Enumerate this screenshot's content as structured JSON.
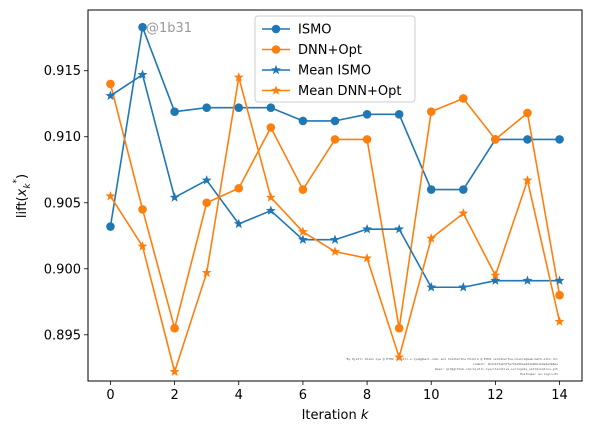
{
  "chart_data": {
    "type": "line",
    "xlabel_prefix": "Iteration ",
    "xlabel_var": "k",
    "ylabel_prefix": "lift(",
    "ylabel_var": "x",
    "ylabel_sub": "k",
    "ylabel_sup": "*",
    "ylabel_suffix": ")",
    "xlim": [
      -0.7,
      14.7
    ],
    "ylim": [
      0.8915,
      0.9196
    ],
    "xticks": [
      0,
      2,
      4,
      6,
      8,
      10,
      12,
      14
    ],
    "yticks": [
      0.895,
      0.9,
      0.905,
      0.91,
      0.915
    ],
    "ytick_labels": [
      "0.895",
      "0.900",
      "0.905",
      "0.910",
      "0.915"
    ],
    "x": [
      0,
      1,
      2,
      3,
      4,
      5,
      6,
      7,
      8,
      9,
      10,
      11,
      12,
      13,
      14
    ],
    "series": [
      {
        "name": "ISMO",
        "color": "#1f77b4",
        "marker": "circle",
        "values": [
          0.9032,
          0.9183,
          0.9119,
          0.9122,
          0.9122,
          0.9122,
          0.9112,
          0.9112,
          0.9117,
          0.9117,
          0.906,
          0.906,
          0.9098,
          0.9098,
          0.9098
        ]
      },
      {
        "name": "DNN+Opt",
        "color": "#ff7f0e",
        "marker": "circle",
        "values": [
          0.914,
          0.9045,
          0.8955,
          0.905,
          0.9061,
          0.9107,
          0.906,
          0.9098,
          0.9098,
          0.8955,
          0.9119,
          0.9129,
          0.9098,
          0.9118,
          0.898
        ]
      },
      {
        "name": "Mean ISMO",
        "color": "#1f77b4",
        "marker": "star",
        "values": [
          0.9131,
          0.9147,
          0.9054,
          0.9067,
          0.9034,
          0.9044,
          0.9022,
          0.9022,
          0.903,
          0.903,
          0.8986,
          0.8986,
          0.8991,
          0.8991,
          0.8991
        ]
      },
      {
        "name": "Mean DNN+Opt",
        "color": "#ff7f0e",
        "marker": "star",
        "values": [
          0.9055,
          0.9017,
          0.8922,
          0.8997,
          0.9145,
          0.9054,
          0.9028,
          0.9013,
          0.9008,
          0.8933,
          0.9023,
          0.9042,
          0.8995,
          0.9067,
          0.896
        ]
      }
    ],
    "legend_position": "top-center",
    "annotation": "@1b31",
    "watermark_lines": [
      "By Kjetil Olsen Lye @ ETHZ <kjetil.o.lye@gmail.com> and Siddhartha Mishra @ ETHZ <siddhartha.mishra@sam.math.ethz.ch>",
      "Commit: 1b31bf3ab37fe7b3e9bea4d2a2bb1a3a9e3b8ea",
      "Repo: git@github.com:kjetil-lye/iterative_surrogate_optimization.git",
      "Hostname: eu-login-01"
    ]
  }
}
